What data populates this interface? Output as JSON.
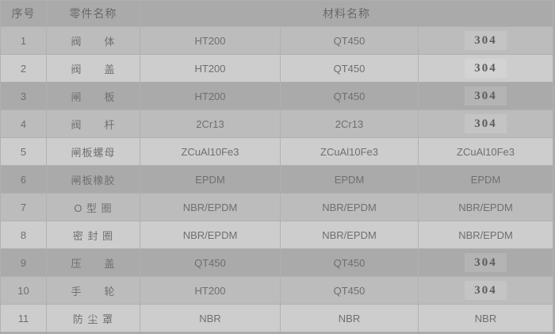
{
  "colors": {
    "row_dark": "#aaaaaa",
    "row_medium": "#bcbcbc",
    "row_light": "#cdcdcd",
    "cell_border": "#b0b0b0",
    "cell_text": "#6f6f6f",
    "header_text": "#696969",
    "alloy_text": "#5d5d5d"
  },
  "table": {
    "header": {
      "serial": "序号",
      "part_name": "零件名称",
      "material_name": "材料名称"
    },
    "alloy_value": "304",
    "rows": [
      {
        "no": "1",
        "part": "阀　　体",
        "materials": [
          "HT200",
          "QT450",
          "304"
        ]
      },
      {
        "no": "2",
        "part": "阀　　盖",
        "materials": [
          "HT200",
          "QT450",
          "304"
        ]
      },
      {
        "no": "3",
        "part": "闸　　板",
        "materials": [
          "HT200",
          "QT450",
          "304"
        ]
      },
      {
        "no": "4",
        "part": "阀　　杆",
        "materials": [
          "2Cr13",
          "2Cr13",
          "304"
        ]
      },
      {
        "no": "5",
        "part": "闸板螺母",
        "materials": [
          "ZCuAl10Fe3",
          "ZCuAl10Fe3",
          "ZCuAl10Fe3"
        ]
      },
      {
        "no": "6",
        "part": "闸板橡胶",
        "materials": [
          "EPDM",
          "EPDM",
          "EPDM"
        ]
      },
      {
        "no": "7",
        "part": "O 型 圈",
        "materials": [
          "NBR/EPDM",
          "NBR/EPDM",
          "NBR/EPDM"
        ]
      },
      {
        "no": "8",
        "part": "密 封 圈",
        "materials": [
          "NBR/EPDM",
          "NBR/EPDM",
          "NBR/EPDM"
        ]
      },
      {
        "no": "9",
        "part": "压　　盖",
        "materials": [
          "QT450",
          "QT450",
          "304"
        ]
      },
      {
        "no": "10",
        "part": "手　　轮",
        "materials": [
          "HT200",
          "QT450",
          "304"
        ]
      },
      {
        "no": "11",
        "part": "防 尘 罩",
        "materials": [
          "NBR",
          "NBR",
          "NBR"
        ]
      }
    ]
  }
}
